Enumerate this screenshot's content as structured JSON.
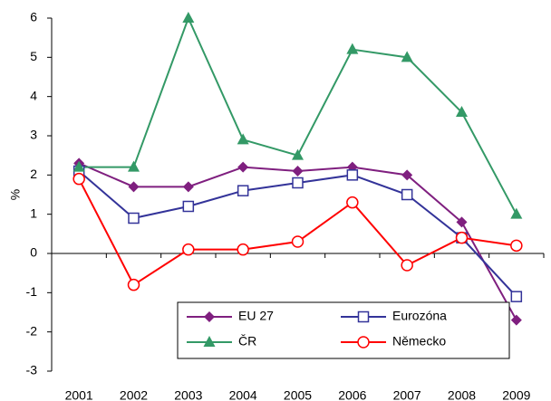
{
  "chart_data": {
    "type": "line",
    "y_label": "%",
    "categories": [
      "2001",
      "2002",
      "2003",
      "2004",
      "2005",
      "2006",
      "2007",
      "2008",
      "2009"
    ],
    "series": [
      {
        "name": "EU 27",
        "color": "#7F1F7F",
        "marker": "diamond",
        "values": [
          2.3,
          1.7,
          1.7,
          2.2,
          2.1,
          2.2,
          2.0,
          0.8,
          -1.7
        ]
      },
      {
        "name": "Eurozóna",
        "color": "#333399",
        "marker": "square",
        "values": [
          2.1,
          0.9,
          1.2,
          1.6,
          1.8,
          2.0,
          1.5,
          0.4,
          -1.1
        ]
      },
      {
        "name": "ČR",
        "color": "#339966",
        "marker": "triangle",
        "values": [
          2.2,
          2.2,
          6.0,
          2.9,
          2.5,
          5.2,
          5.0,
          3.6,
          1.0
        ]
      },
      {
        "name": "Německo",
        "color": "#FF0000",
        "marker": "circle",
        "values": [
          1.9,
          -0.8,
          0.1,
          0.1,
          0.3,
          1.3,
          -0.3,
          0.4,
          0.2
        ]
      }
    ],
    "ylim": [
      -3,
      6
    ],
    "yticks": [
      -3,
      -2,
      -1,
      0,
      1,
      2,
      3,
      4,
      5,
      6
    ]
  }
}
